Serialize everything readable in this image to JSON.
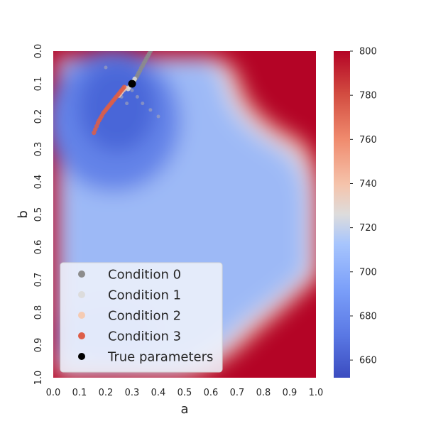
{
  "chart_data": {
    "type": "heatmap",
    "title": "",
    "xlabel": "a",
    "ylabel": "b",
    "xlim": [
      0.0,
      1.0
    ],
    "ylim": [
      0.0,
      1.0
    ],
    "y_inverted": true,
    "x_ticks": [
      "0.0",
      "0.1",
      "0.2",
      "0.3",
      "0.4",
      "0.5",
      "0.6",
      "0.7",
      "0.8",
      "0.9",
      "1.0"
    ],
    "y_ticks": [
      "0.0",
      "0.1",
      "0.2",
      "0.3",
      "0.4",
      "0.5",
      "0.6",
      "0.7",
      "0.8",
      "0.9",
      "1.0"
    ],
    "colormap": "coolwarm",
    "colorbar": {
      "min": 652,
      "max": 800,
      "ticks": [
        "660",
        "680",
        "700",
        "720",
        "740",
        "760",
        "780",
        "800"
      ],
      "tick_values": [
        660,
        680,
        700,
        720,
        740,
        760,
        780,
        800
      ]
    },
    "grid": false,
    "legend_position": "lower-left",
    "series": [
      {
        "name": "Condition 0",
        "color": "#8c8c8c",
        "points": [
          [
            0.37,
            0.0
          ],
          [
            0.365,
            0.008
          ],
          [
            0.36,
            0.015
          ],
          [
            0.355,
            0.022
          ],
          [
            0.35,
            0.03
          ],
          [
            0.345,
            0.037
          ],
          [
            0.34,
            0.045
          ],
          [
            0.335,
            0.052
          ],
          [
            0.33,
            0.06
          ],
          [
            0.325,
            0.067
          ],
          [
            0.32,
            0.075
          ],
          [
            0.315,
            0.082
          ],
          [
            0.31,
            0.088
          ],
          [
            0.305,
            0.095
          ],
          [
            0.3,
            0.1
          ],
          [
            0.295,
            0.105
          ],
          [
            0.29,
            0.11
          ],
          [
            0.285,
            0.115
          ]
        ]
      },
      {
        "name": "Condition 1",
        "color": "#dcdcdc",
        "points": [
          [
            0.31,
            0.085
          ],
          [
            0.305,
            0.092
          ],
          [
            0.3,
            0.098
          ],
          [
            0.295,
            0.104
          ],
          [
            0.29,
            0.11
          ],
          [
            0.285,
            0.116
          ]
        ]
      },
      {
        "name": "Condition 2",
        "color": "#f5cbb3",
        "points": [
          [
            0.275,
            0.112
          ],
          [
            0.268,
            0.118
          ],
          [
            0.262,
            0.124
          ],
          [
            0.256,
            0.13
          ],
          [
            0.25,
            0.136
          ]
        ]
      },
      {
        "name": "Condition 3",
        "color": "#dd5e48",
        "points": [
          [
            0.27,
            0.11
          ],
          [
            0.265,
            0.115
          ],
          [
            0.26,
            0.12
          ],
          [
            0.255,
            0.125
          ],
          [
            0.25,
            0.13
          ],
          [
            0.245,
            0.135
          ],
          [
            0.24,
            0.14
          ],
          [
            0.235,
            0.145
          ],
          [
            0.23,
            0.15
          ],
          [
            0.225,
            0.155
          ],
          [
            0.22,
            0.16
          ],
          [
            0.215,
            0.165
          ],
          [
            0.21,
            0.17
          ],
          [
            0.205,
            0.175
          ],
          [
            0.2,
            0.18
          ],
          [
            0.195,
            0.185
          ],
          [
            0.19,
            0.19
          ],
          [
            0.185,
            0.198
          ],
          [
            0.18,
            0.205
          ],
          [
            0.175,
            0.212
          ],
          [
            0.17,
            0.22
          ],
          [
            0.165,
            0.23
          ],
          [
            0.16,
            0.24
          ],
          [
            0.155,
            0.25
          ]
        ]
      },
      {
        "name": "True parameters",
        "color": "#000000",
        "points": [
          [
            0.3,
            0.1
          ]
        ]
      }
    ],
    "faint_points": [
      [
        0.2,
        0.05
      ],
      [
        0.27,
        0.12
      ],
      [
        0.3,
        0.12
      ],
      [
        0.32,
        0.14
      ],
      [
        0.34,
        0.16
      ],
      [
        0.37,
        0.18
      ],
      [
        0.4,
        0.2
      ],
      [
        0.28,
        0.16
      ],
      [
        0.26,
        0.14
      ]
    ]
  }
}
